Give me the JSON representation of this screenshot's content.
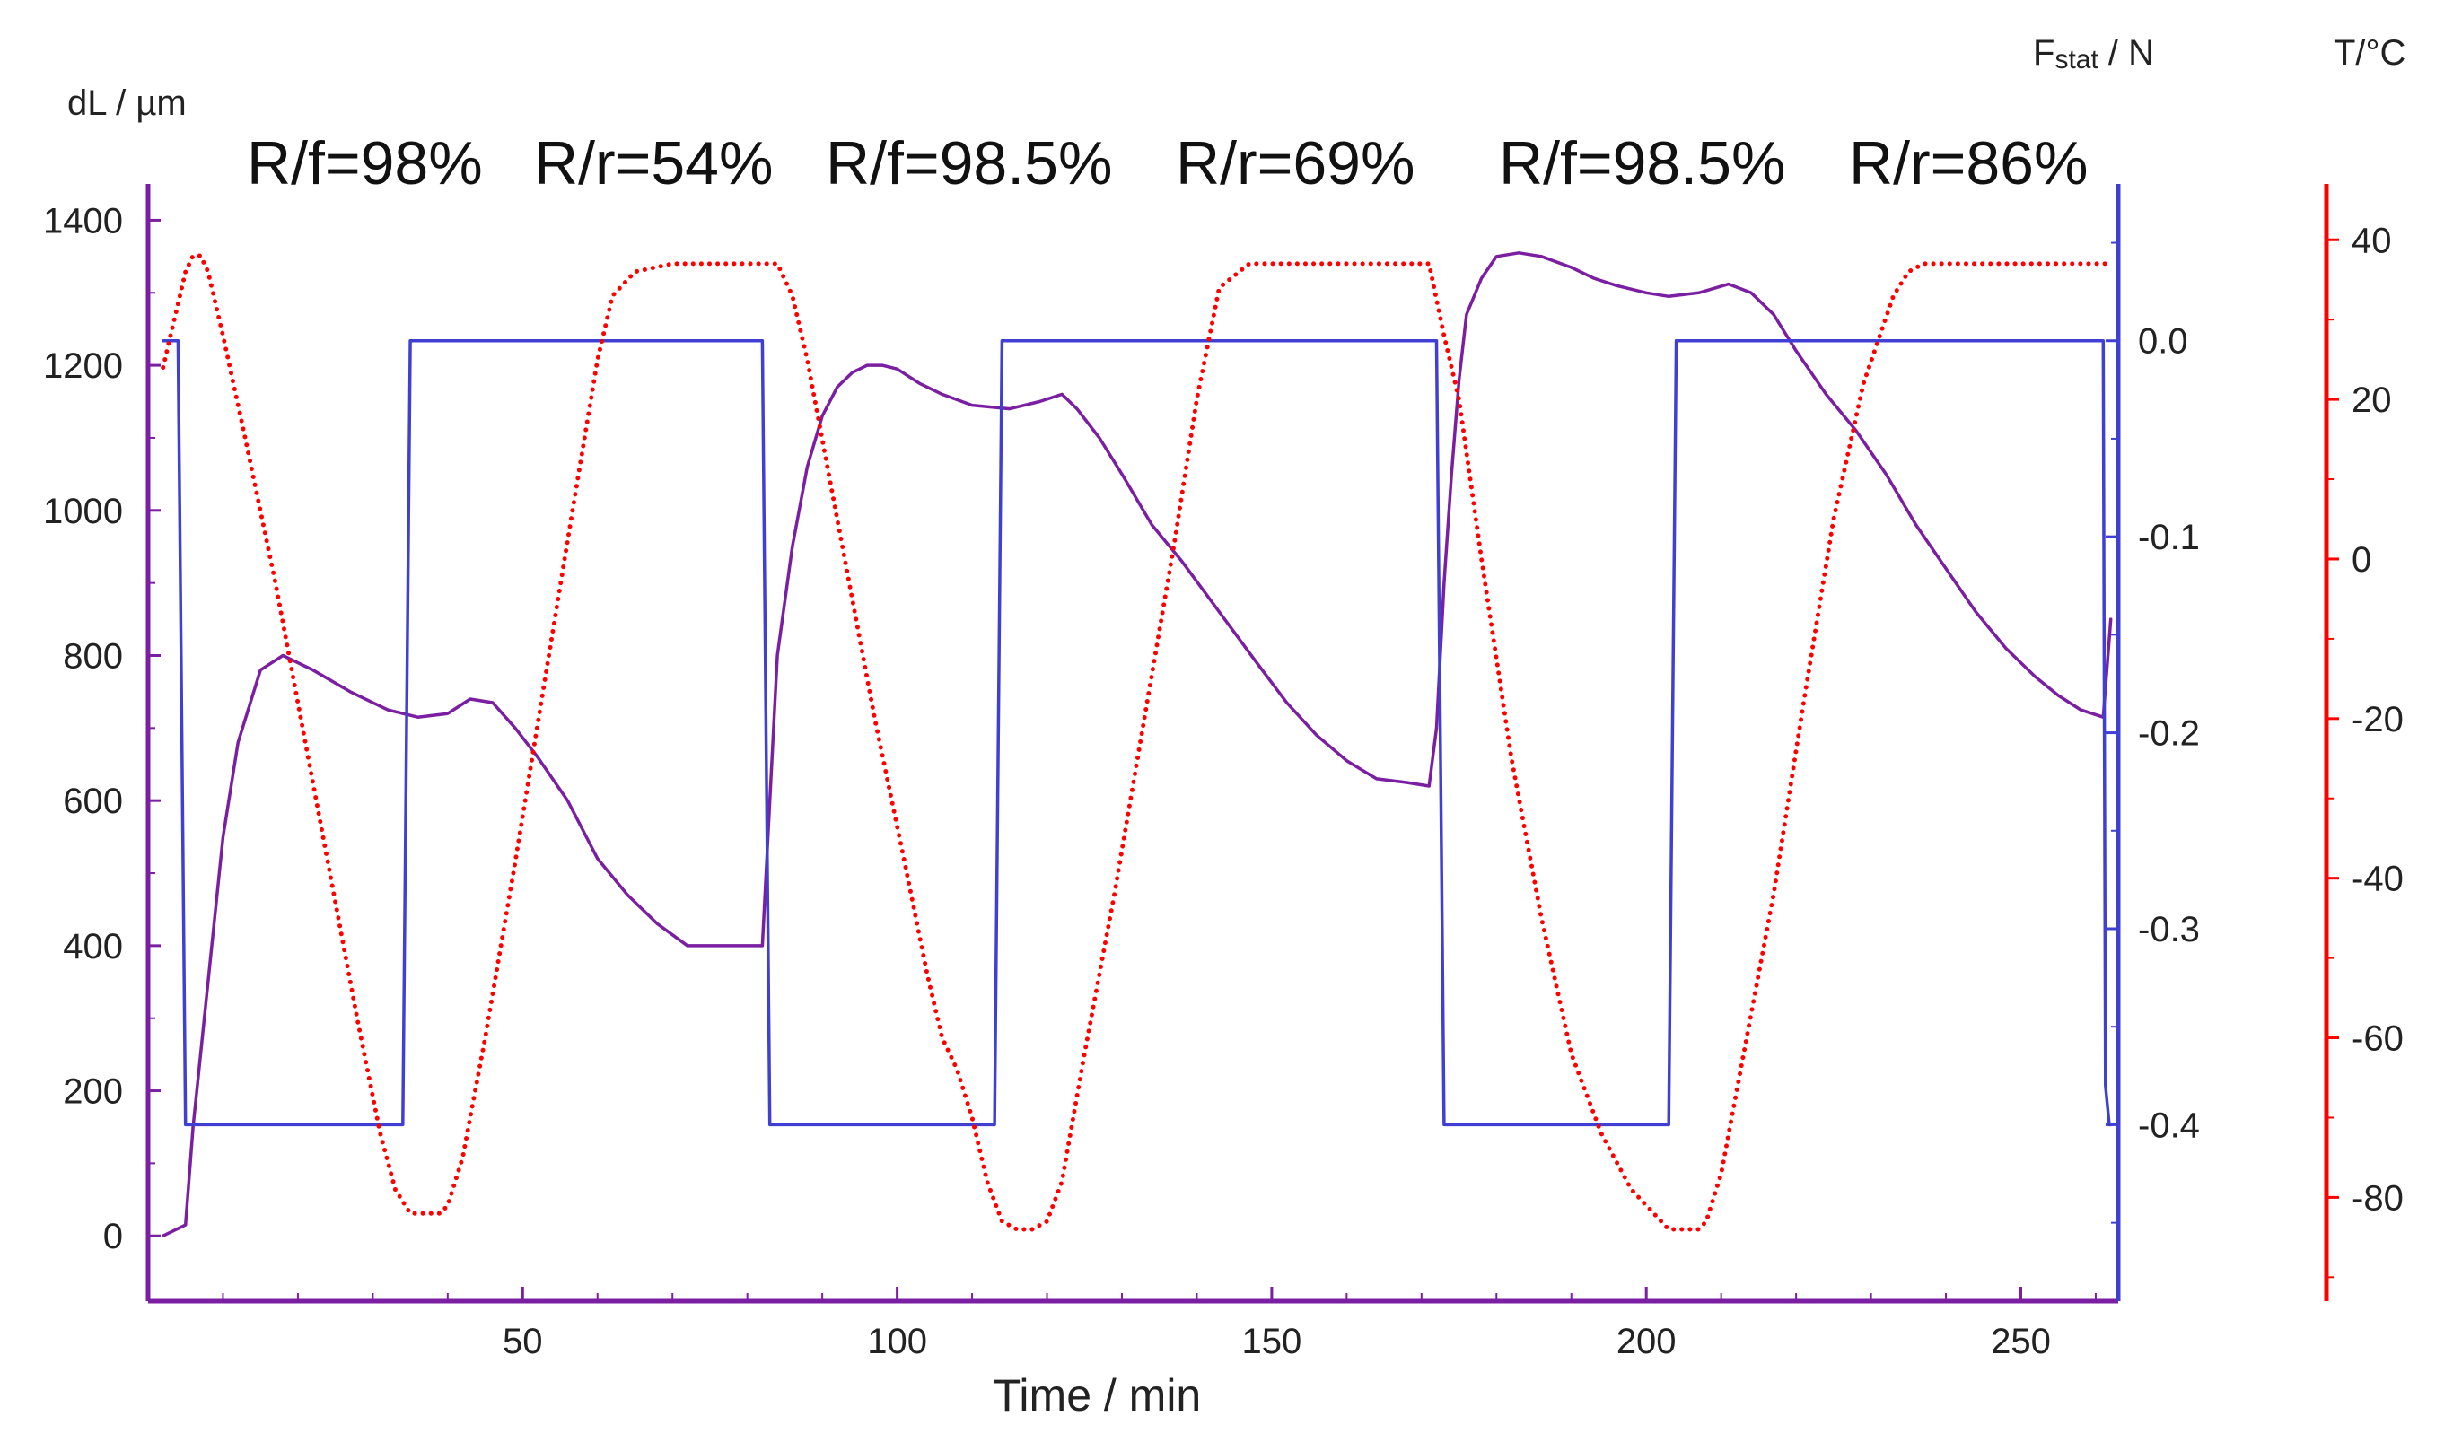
{
  "chart_data": {
    "type": "line",
    "xlabel": "Time / min",
    "x_ticks": [
      50,
      100,
      150,
      200,
      250
    ],
    "xlim": [
      0,
      263
    ],
    "axes": {
      "dL": {
        "label": "dL / µm",
        "ylim": [
          -90,
          1450
        ],
        "ticks": [
          0,
          200,
          400,
          600,
          800,
          1000,
          1200,
          1400
        ],
        "color": "#7b1fa2"
      },
      "F": {
        "label_main": "F",
        "label_sub": "stat",
        "label_rest": " / N",
        "ylim": [
          -0.49,
          0.08
        ],
        "ticks": [
          "0.0",
          "-0.1",
          "-0.2",
          "-0.3",
          "-0.4"
        ],
        "color": "#3f3fd4"
      },
      "T": {
        "label": "T/°C",
        "ylim": [
          -93,
          47
        ],
        "ticks": [
          40,
          20,
          0,
          -20,
          -40,
          -60,
          -80
        ],
        "color": "#ff0000"
      }
    },
    "annotations": [
      "R/f=98%",
      "R/r=54%",
      "R/f=98.5%",
      "R/r=69%",
      "R/f=98.5%",
      "R/r=86%"
    ],
    "series": [
      {
        "name": "dL",
        "axis": "dL",
        "style": "solid",
        "color": "#7b1fa2",
        "x": [
          2,
          5,
          6,
          8,
          10,
          12,
          15,
          18,
          22,
          27,
          32,
          36,
          40,
          43,
          46,
          49,
          52,
          56,
          60,
          64,
          68,
          72,
          76,
          79,
          82,
          83,
          84,
          86,
          88,
          90,
          92,
          94,
          96,
          98,
          100,
          103,
          106,
          110,
          115,
          119,
          122,
          124,
          127,
          130,
          134,
          138,
          143,
          148,
          152,
          156,
          160,
          164,
          168,
          171,
          172,
          173,
          174,
          175,
          176,
          178,
          180,
          183,
          186,
          190,
          193,
          196,
          200,
          203,
          207,
          211,
          214,
          217,
          220,
          224,
          228,
          232,
          236,
          240,
          244,
          248,
          252,
          255,
          258,
          261,
          262
        ],
        "y": [
          0,
          15,
          150,
          350,
          550,
          680,
          780,
          800,
          780,
          750,
          725,
          715,
          720,
          740,
          735,
          700,
          660,
          600,
          520,
          470,
          430,
          400,
          400,
          400,
          400,
          600,
          800,
          950,
          1060,
          1130,
          1170,
          1190,
          1200,
          1200,
          1195,
          1175,
          1160,
          1145,
          1140,
          1150,
          1160,
          1140,
          1100,
          1050,
          980,
          930,
          860,
          790,
          735,
          690,
          655,
          630,
          625,
          620,
          700,
          900,
          1050,
          1180,
          1270,
          1320,
          1350,
          1355,
          1350,
          1335,
          1320,
          1310,
          1300,
          1295,
          1300,
          1312,
          1300,
          1270,
          1220,
          1160,
          1110,
          1050,
          980,
          920,
          860,
          810,
          770,
          745,
          725,
          715,
          850
        ]
      },
      {
        "name": "F_stat",
        "axis": "F",
        "style": "solid",
        "color": "#3f3fd4",
        "x": [
          2,
          4,
          4.5,
          5,
          34,
          34.5,
          35,
          82,
          82.5,
          83,
          113,
          113.5,
          114,
          172,
          172.5,
          173,
          203,
          203.5,
          204,
          261,
          261.3,
          261.8,
          262
        ],
        "y": [
          0.0,
          0.0,
          -0.2,
          -0.4,
          -0.4,
          -0.2,
          0.0,
          0.0,
          -0.2,
          -0.4,
          -0.4,
          -0.2,
          0.0,
          0.0,
          -0.2,
          -0.4,
          -0.4,
          -0.2,
          0.0,
          0.0,
          -0.38,
          -0.4,
          -0.4
        ]
      },
      {
        "name": "T",
        "axis": "T",
        "style": "dotted",
        "color": "#ff0000",
        "x": [
          2,
          3,
          4,
          5,
          6,
          7,
          8,
          10,
          13,
          17,
          20,
          24,
          28,
          31,
          33,
          35,
          37,
          39,
          40,
          42,
          45,
          49,
          53,
          57,
          60,
          62,
          65,
          70,
          75,
          80,
          84,
          86,
          88,
          90,
          93,
          97,
          101,
          104,
          106,
          108,
          110,
          112,
          114,
          116,
          118,
          120,
          122,
          125,
          129,
          133,
          137,
          140,
          143,
          147,
          152,
          158,
          165,
          171,
          173,
          175,
          178,
          182,
          186,
          190,
          194,
          198,
          201,
          203,
          205,
          207,
          208,
          210,
          213,
          217,
          221,
          225,
          229,
          233,
          235,
          237,
          240,
          245,
          252,
          258,
          262
        ],
        "y": [
          24,
          28,
          32,
          36,
          38,
          38,
          36,
          28,
          15,
          -3,
          -18,
          -38,
          -58,
          -72,
          -79,
          -82,
          -82,
          -82,
          -81,
          -75,
          -60,
          -38,
          -15,
          8,
          25,
          33,
          36,
          37,
          37,
          37,
          37,
          33,
          25,
          15,
          0,
          -20,
          -38,
          -52,
          -60,
          -64,
          -70,
          -78,
          -83,
          -84,
          -84,
          -83,
          -78,
          -62,
          -42,
          -20,
          2,
          20,
          34,
          37,
          37,
          37,
          37,
          37,
          28,
          20,
          0,
          -25,
          -45,
          -62,
          -72,
          -79,
          -82,
          -84,
          -84,
          -84,
          -83,
          -77,
          -62,
          -42,
          -18,
          5,
          22,
          33,
          36,
          37,
          37,
          37,
          37,
          37,
          37
        ]
      }
    ]
  }
}
